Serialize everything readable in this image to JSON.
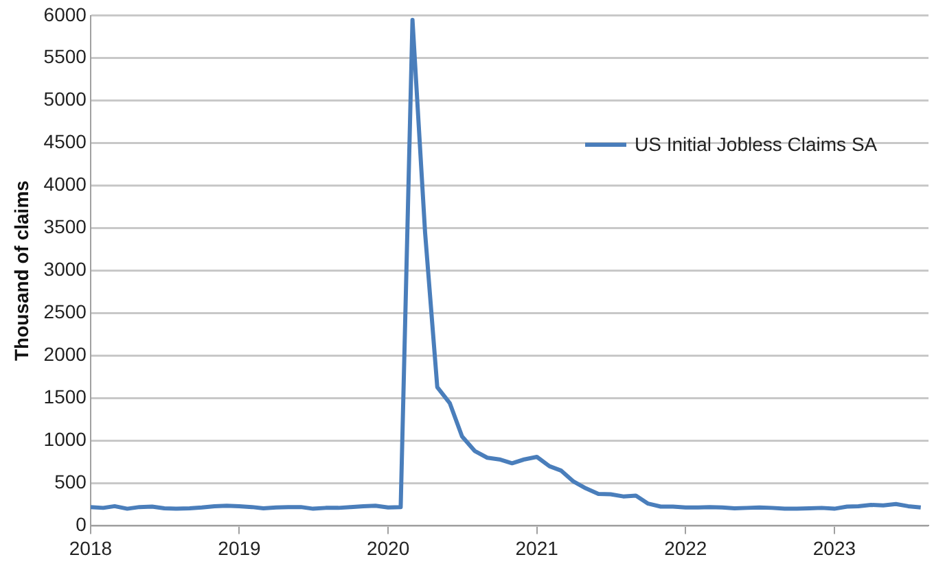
{
  "chart_data": {
    "type": "line",
    "ylabel": "Thousand of claims",
    "x": [
      "2018-01",
      "2018-02",
      "2018-03",
      "2018-04",
      "2018-05",
      "2018-06",
      "2018-07",
      "2018-08",
      "2018-09",
      "2018-10",
      "2018-11",
      "2018-12",
      "2019-01",
      "2019-02",
      "2019-03",
      "2019-04",
      "2019-05",
      "2019-06",
      "2019-07",
      "2019-08",
      "2019-09",
      "2019-10",
      "2019-11",
      "2019-12",
      "2020-01",
      "2020-02",
      "2020-03",
      "2020-04",
      "2020-05",
      "2020-06",
      "2020-07",
      "2020-08",
      "2020-09",
      "2020-10",
      "2020-11",
      "2020-12",
      "2021-01",
      "2021-02",
      "2021-03",
      "2021-04",
      "2021-05",
      "2021-06",
      "2021-07",
      "2021-08",
      "2021-09",
      "2021-10",
      "2021-11",
      "2021-12",
      "2022-01",
      "2022-02",
      "2022-03",
      "2022-04",
      "2022-05",
      "2022-06",
      "2022-07",
      "2022-08",
      "2022-09",
      "2022-10",
      "2022-11",
      "2022-12",
      "2023-01",
      "2023-02",
      "2023-03",
      "2023-04",
      "2023-05",
      "2023-06",
      "2023-07",
      "2023-08"
    ],
    "series": [
      {
        "name": "US Initial Jobless Claims SA",
        "color": "#4a7ebb",
        "values": [
          220,
          210,
          230,
          200,
          220,
          225,
          205,
          200,
          205,
          215,
          230,
          235,
          230,
          220,
          205,
          215,
          220,
          220,
          200,
          210,
          210,
          220,
          230,
          235,
          215,
          220,
          5950,
          3450,
          1630,
          1440,
          1050,
          880,
          800,
          780,
          735,
          780,
          810,
          700,
          650,
          520,
          440,
          375,
          370,
          345,
          355,
          260,
          225,
          225,
          215,
          215,
          220,
          215,
          205,
          210,
          215,
          210,
          200,
          200,
          205,
          210,
          200,
          225,
          230,
          245,
          240,
          255,
          230,
          215
        ]
      }
    ],
    "xlim": [
      "2018-01-01",
      "2023-08-20"
    ],
    "xticks": [
      "2018",
      "2019",
      "2020",
      "2021",
      "2022",
      "2023"
    ],
    "ylim": [
      0,
      6000
    ],
    "yticks": [
      0,
      500,
      1000,
      1500,
      2000,
      2500,
      3000,
      3500,
      4000,
      4500,
      5000,
      5500,
      6000
    ],
    "grid": "y",
    "legend": "right",
    "marker": "none",
    "line_style": "solid"
  }
}
